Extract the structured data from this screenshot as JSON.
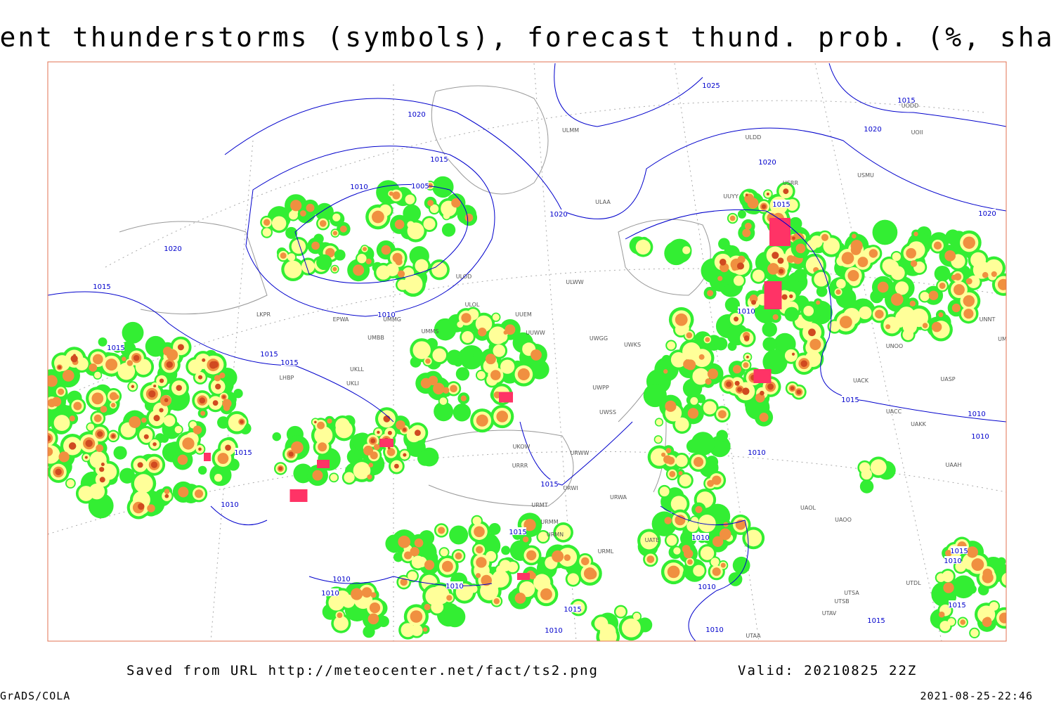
{
  "title": "Current thunderstorms (symbols), forecast thund. prob. (%, shaded)",
  "footer": {
    "source": "Saved from URL http://meteocenter.net/fact/ts2.png",
    "valid": "Valid: 20210825 22Z",
    "software": "GrADS/COLA",
    "timestamp": "2021-08-25-22:46"
  },
  "isobar_labels": [
    "1020",
    "1015",
    "1010",
    "1005",
    "1020",
    "1025",
    "1015",
    "1020",
    "1020",
    "1015",
    "1020",
    "1020",
    "1015",
    "1015",
    "1015",
    "1015",
    "1010",
    "1010",
    "1015",
    "1010",
    "1010",
    "1015",
    "1010",
    "1015",
    "1010",
    "1015",
    "1010",
    "1010",
    "1010",
    "1010",
    "1010",
    "1015",
    "1010",
    "1010",
    "1015",
    "1010",
    "1015",
    "1015"
  ],
  "station_labels": [
    "ULMM",
    "ULDD",
    "USMU",
    "ULAA",
    "UUYY",
    "ULOD",
    "ULWW",
    "UUEM",
    "ULOL",
    "UMMS",
    "UUWW",
    "UWGG",
    "UWKS",
    "UMBB",
    "EPWA",
    "UMMG",
    "LKPR",
    "UKLL",
    "UKLI",
    "LHBP",
    "UWPP",
    "UWSS",
    "URWW",
    "UKOW",
    "URRR",
    "URWI",
    "URWA",
    "URMT",
    "URMM",
    "URMN",
    "UATE",
    "URML",
    "UACK",
    "UASP",
    "UACC",
    "UAKK",
    "UAOL",
    "UAOO",
    "UTSA",
    "UTSB",
    "UTAV",
    "UTAA",
    "USRR",
    "UNOO",
    "UODD",
    "UOII",
    "UMBB",
    "UNNT",
    "UAAH",
    "UTDL"
  ]
}
